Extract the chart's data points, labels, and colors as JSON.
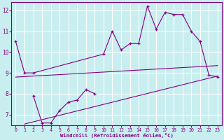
{
  "bg_color": "#c8eef0",
  "line_color": "#800080",
  "grid_color": "#ffffff",
  "xlabel": "Windchill (Refroidissement éolien,°C)",
  "xlabel_color": "#800080",
  "xticks": [
    0,
    1,
    2,
    3,
    4,
    5,
    6,
    7,
    8,
    9,
    10,
    11,
    12,
    13,
    14,
    15,
    16,
    17,
    18,
    19,
    20,
    21,
    22,
    23
  ],
  "yticks": [
    7,
    8,
    9,
    10,
    11,
    12
  ],
  "xlim": [
    -0.5,
    23.5
  ],
  "ylim": [
    6.5,
    12.4
  ],
  "series1_x": [
    0,
    1,
    2,
    10,
    11,
    12,
    13,
    14,
    15,
    16,
    17,
    18,
    19,
    20,
    21,
    22,
    23
  ],
  "series1_y": [
    10.5,
    9.0,
    9.0,
    9.9,
    11.0,
    10.1,
    10.4,
    10.4,
    12.2,
    11.1,
    11.9,
    11.8,
    11.8,
    11.0,
    10.5,
    8.9,
    8.8
  ],
  "series2_x": [
    2,
    3,
    4,
    5,
    6,
    7,
    8,
    9
  ],
  "series2_y": [
    7.9,
    6.6,
    6.6,
    7.2,
    7.6,
    7.7,
    8.2,
    8.0
  ],
  "trend1_x": [
    0,
    23
  ],
  "trend1_y": [
    8.8,
    9.35
  ],
  "trend2_x": [
    1,
    23
  ],
  "trend2_y": [
    6.55,
    8.85
  ]
}
